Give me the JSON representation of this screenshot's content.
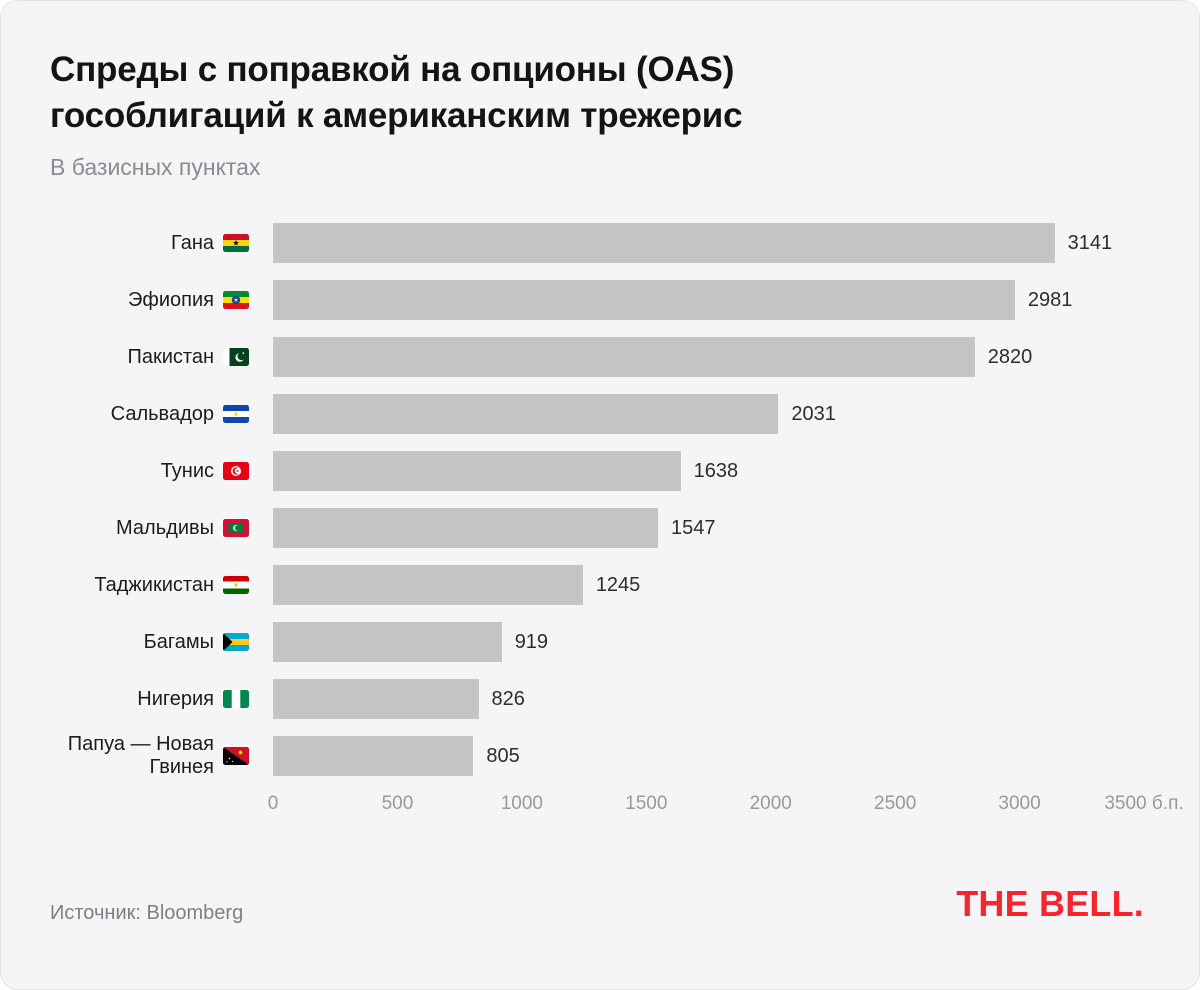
{
  "header": {
    "title_line1": "Спреды с поправкой на опционы (OAS)",
    "title_line2": "гособлигаций к американским трежерис",
    "subtitle": "В базисных пунктах"
  },
  "chart_data": {
    "type": "bar",
    "orientation": "horizontal",
    "title": "Спреды с поправкой на опционы (OAS) гособлигаций к американским трежерис",
    "subtitle": "В базисных пунктах",
    "categories": [
      "Гана",
      "Эфиопия",
      "Пакистан",
      "Сальвадор",
      "Тунис",
      "Мальдивы",
      "Таджикистан",
      "Багамы",
      "Нигерия",
      "Папуа — Новая Гвинея"
    ],
    "values": [
      3141,
      2981,
      2820,
      2031,
      1638,
      1547,
      1245,
      919,
      826,
      805
    ],
    "flags": [
      "gh",
      "et",
      "pk",
      "sv",
      "tn",
      "mv",
      "tj",
      "bs",
      "ng",
      "pg"
    ],
    "x_ticks": [
      {
        "value": 0,
        "label": "0"
      },
      {
        "value": 500,
        "label": "500"
      },
      {
        "value": 1000,
        "label": "1000"
      },
      {
        "value": 1500,
        "label": "1500"
      },
      {
        "value": 2000,
        "label": "2000"
      },
      {
        "value": 2500,
        "label": "2500"
      },
      {
        "value": 3000,
        "label": "3000"
      },
      {
        "value": 3500,
        "label": "3500 б.п."
      }
    ],
    "xlim": [
      0,
      3500
    ],
    "grid": false,
    "colors": {
      "background": "#f5f5f7",
      "bar": "#c4c4c6",
      "text_dark": "#1c1c1e",
      "text_gray": "#98989d",
      "brand_red": "#F8262C"
    }
  },
  "footer": {
    "source": "Источник: Bloomberg",
    "logo": "THE BELL."
  }
}
